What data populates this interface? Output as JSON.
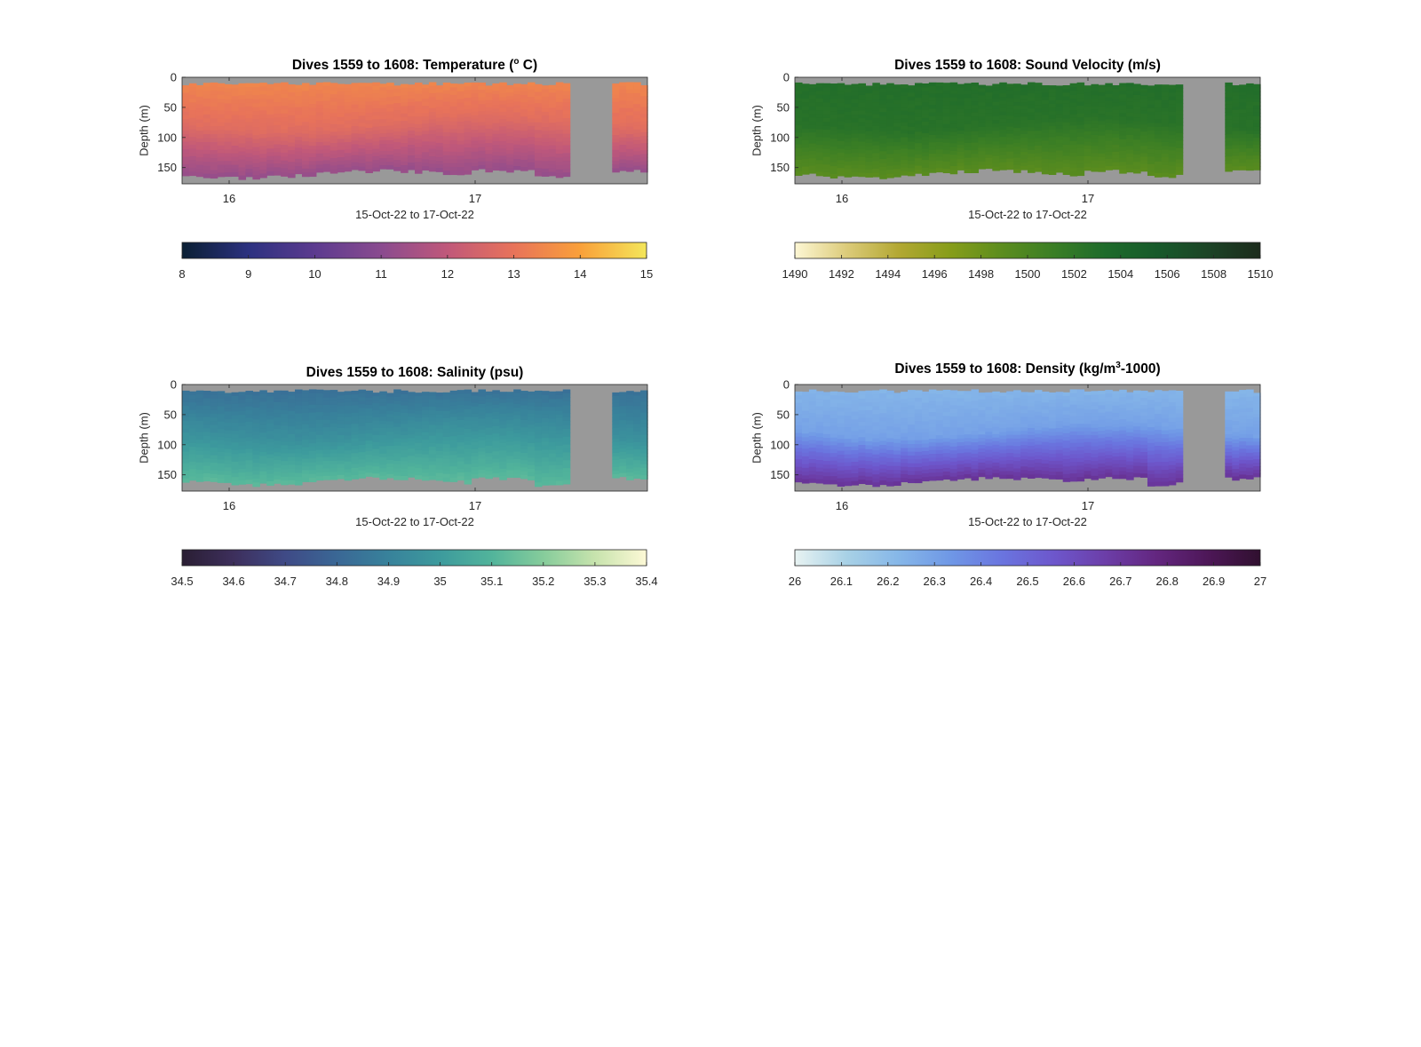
{
  "chart_data": [
    {
      "type": "heatmap",
      "title_prefix": "Dives 1559 to 1608: Temperature (",
      "title_sup": "o",
      "title_suffix": " C)",
      "ylabel": "Depth (m)",
      "xlabel": "15-Oct-22 to 17-Oct-22",
      "x_ticks": [
        "16",
        "17"
      ],
      "y_ticks": [
        "0",
        "50",
        "100",
        "150"
      ],
      "ylim": [
        0,
        177
      ],
      "colorbar": {
        "min": 8,
        "max": 15,
        "ticks": [
          "8",
          "9",
          "10",
          "11",
          "12",
          "13",
          "14",
          "15"
        ],
        "colors": [
          "#0a1f33",
          "#2c3180",
          "#5c3b8f",
          "#8a4b8f",
          "#c0587a",
          "#e8735a",
          "#f9a03a",
          "#f4e65a"
        ]
      },
      "profile": {
        "surface": 13.5,
        "mid": 12.8,
        "deep": 11.2
      }
    },
    {
      "type": "heatmap",
      "title_prefix": "Dives 1559 to 1608: Sound Velocity (m/s)",
      "title_sup": "",
      "title_suffix": "",
      "ylabel": "Depth (m)",
      "xlabel": "15-Oct-22 to 17-Oct-22",
      "x_ticks": [
        "16",
        "17"
      ],
      "y_ticks": [
        "0",
        "50",
        "100",
        "150"
      ],
      "ylim": [
        0,
        177
      ],
      "colorbar": {
        "min": 1490,
        "max": 1510,
        "ticks": [
          "1490",
          "1492",
          "1494",
          "1496",
          "1498",
          "1500",
          "1502",
          "1504",
          "1506",
          "1508",
          "1510"
        ],
        "colors": [
          "#fdf7d4",
          "#dccb7a",
          "#b3a833",
          "#879d1a",
          "#5c8d1e",
          "#3a7e25",
          "#1e6b2b",
          "#175a2b",
          "#1c4426",
          "#1c2b1c"
        ]
      },
      "profile": {
        "surface": 1503.0,
        "mid": 1502.5,
        "deep": 1499.0
      }
    },
    {
      "type": "heatmap",
      "title_prefix": "Dives 1559 to 1608: Salinity (psu)",
      "title_sup": "",
      "title_suffix": "",
      "ylabel": "Depth (m)",
      "xlabel": "15-Oct-22 to 17-Oct-22",
      "x_ticks": [
        "16",
        "17"
      ],
      "y_ticks": [
        "0",
        "50",
        "100",
        "150"
      ],
      "ylim": [
        0,
        177
      ],
      "colorbar": {
        "min": 34.5,
        "max": 35.4,
        "ticks": [
          "34.5",
          "34.6",
          "34.7",
          "34.8",
          "34.9",
          "35",
          "35.1",
          "35.2",
          "35.3",
          "35.4"
        ],
        "colors": [
          "#2a1e33",
          "#3d2f5c",
          "#3f4a86",
          "#3a6795",
          "#38829b",
          "#3d9b9d",
          "#52b49b",
          "#86cc9b",
          "#c7e3ad",
          "#fdf9d6"
        ]
      },
      "profile": {
        "surface": 34.82,
        "mid": 34.95,
        "deep": 35.12
      }
    },
    {
      "type": "heatmap",
      "title_prefix": "Dives 1559 to 1608: Density (kg/m",
      "title_sup": "3",
      "title_suffix": "-1000)",
      "ylabel": "Depth (m)",
      "xlabel": "15-Oct-22 to 17-Oct-22",
      "x_ticks": [
        "16",
        "17"
      ],
      "y_ticks": [
        "0",
        "50",
        "100",
        "150"
      ],
      "ylim": [
        0,
        177
      ],
      "colorbar": {
        "min": 26,
        "max": 27,
        "ticks": [
          "26",
          "26.1",
          "26.2",
          "26.3",
          "26.4",
          "26.5",
          "26.6",
          "26.7",
          "26.8",
          "26.9",
          "27"
        ],
        "colors": [
          "#e8f3f2",
          "#a8d1e6",
          "#86b7e8",
          "#6f98e6",
          "#6a75df",
          "#6d57cc",
          "#6c3ea8",
          "#63267f",
          "#4d1757",
          "#30102f"
        ]
      },
      "profile": {
        "surface": 26.22,
        "mid": 26.3,
        "deep": 26.72
      }
    }
  ]
}
